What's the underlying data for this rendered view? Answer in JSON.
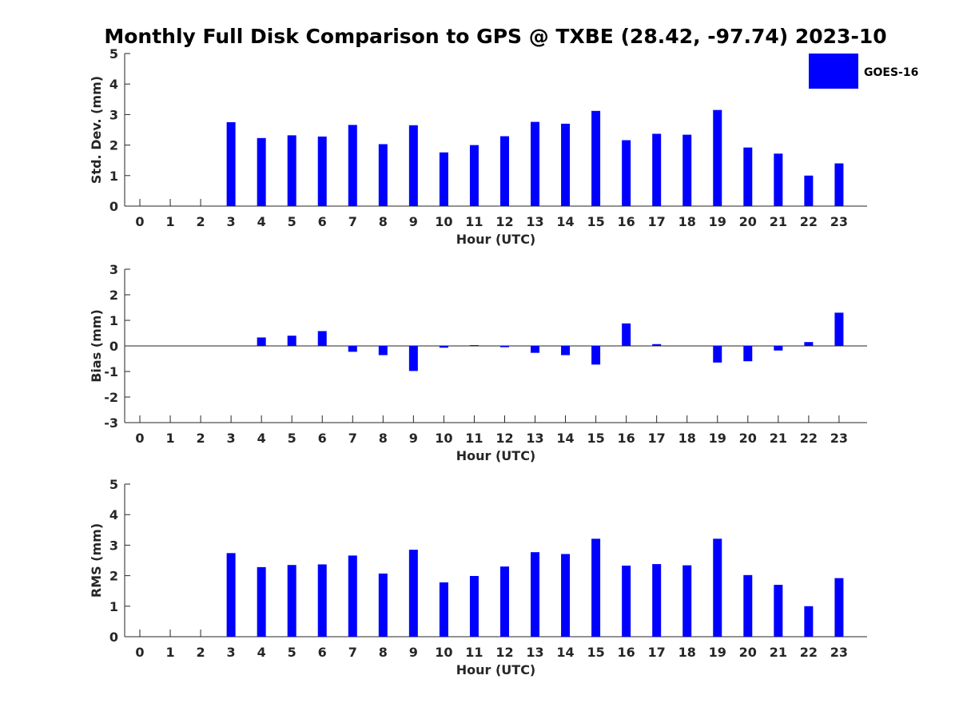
{
  "title": "Monthly Full Disk Comparison to GPS @ TXBE (28.42, -97.74) 2023-10",
  "legend": {
    "label": "GOES-16",
    "color": "#0000ff",
    "placement": "top-right"
  },
  "chart_data": [
    {
      "type": "bar",
      "categories": [
        "0",
        "1",
        "2",
        "3",
        "4",
        "5",
        "6",
        "7",
        "8",
        "9",
        "10",
        "11",
        "12",
        "13",
        "14",
        "15",
        "16",
        "17",
        "18",
        "19",
        "20",
        "21",
        "22",
        "23"
      ],
      "series": [
        {
          "name": "GOES-16",
          "values": [
            null,
            null,
            null,
            2.75,
            2.23,
            2.32,
            2.28,
            2.66,
            2.03,
            2.65,
            1.76,
            2.0,
            2.29,
            2.76,
            2.7,
            3.12,
            2.16,
            2.37,
            2.34,
            3.15,
            1.92,
            1.72,
            1.0,
            1.4
          ]
        }
      ],
      "xlabel": "Hour (UTC)",
      "ylabel": "Std. Dev. (mm)",
      "ylim": [
        0,
        5
      ],
      "yticks": [
        0,
        1,
        2,
        3,
        4,
        5
      ],
      "grid": false
    },
    {
      "type": "bar",
      "categories": [
        "0",
        "1",
        "2",
        "3",
        "4",
        "5",
        "6",
        "7",
        "8",
        "9",
        "10",
        "11",
        "12",
        "13",
        "14",
        "15",
        "16",
        "17",
        "18",
        "19",
        "20",
        "21",
        "22",
        "23"
      ],
      "series": [
        {
          "name": "GOES-16",
          "values": [
            null,
            null,
            null,
            0.0,
            0.33,
            0.4,
            0.58,
            -0.23,
            -0.36,
            -0.98,
            -0.07,
            0.03,
            -0.05,
            -0.27,
            -0.36,
            -0.73,
            0.88,
            0.07,
            0.0,
            -0.65,
            -0.6,
            -0.18,
            0.15,
            1.3
          ]
        }
      ],
      "xlabel": "Hour (UTC)",
      "ylabel": "Bias (mm)",
      "ylim": [
        -3,
        3
      ],
      "yticks": [
        -3,
        -2,
        -1,
        0,
        1,
        2,
        3
      ],
      "zero_line": true,
      "grid": false
    },
    {
      "type": "bar",
      "categories": [
        "0",
        "1",
        "2",
        "3",
        "4",
        "5",
        "6",
        "7",
        "8",
        "9",
        "10",
        "11",
        "12",
        "13",
        "14",
        "15",
        "16",
        "17",
        "18",
        "19",
        "20",
        "21",
        "22",
        "23"
      ],
      "series": [
        {
          "name": "GOES-16",
          "values": [
            null,
            null,
            null,
            2.74,
            2.28,
            2.35,
            2.37,
            2.66,
            2.07,
            2.85,
            1.78,
            1.99,
            2.3,
            2.77,
            2.71,
            3.21,
            2.33,
            2.38,
            2.34,
            3.21,
            2.02,
            1.7,
            1.0,
            1.92
          ]
        }
      ],
      "xlabel": "Hour (UTC)",
      "ylabel": "RMS (mm)",
      "ylim": [
        0,
        5
      ],
      "yticks": [
        0,
        1,
        2,
        3,
        4,
        5
      ],
      "grid": false
    }
  ]
}
